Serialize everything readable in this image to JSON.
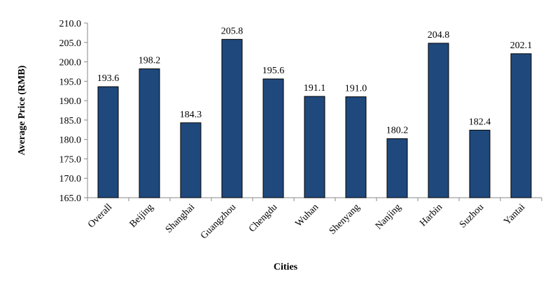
{
  "chart_data": {
    "type": "bar",
    "title": "",
    "xlabel": "Cities",
    "ylabel": "Average Price (RMB)",
    "ylim": [
      165,
      210
    ],
    "yticks": [
      "165.0",
      "170.0",
      "175.0",
      "180.0",
      "185.0",
      "190.0",
      "195.0",
      "200.0",
      "205.0",
      "210.0"
    ],
    "categories": [
      "Overall",
      "Beijing",
      "Shanghai",
      "Guangzhou",
      "Chengdu",
      "Wuhan",
      "Shenyang",
      "Nanjing",
      "Harbin",
      "Suzhou",
      "Yantai"
    ],
    "values": [
      193.6,
      198.2,
      184.3,
      205.8,
      195.6,
      191.1,
      191.0,
      180.2,
      204.8,
      182.4,
      202.1
    ],
    "data_labels": [
      "193.6",
      "198.2",
      "184.3",
      "205.8",
      "195.6",
      "191.1",
      "191.0",
      "180.2",
      "204.8",
      "182.4",
      "202.1"
    ],
    "bar_color": "#1f497d",
    "grid": false,
    "legend": "none"
  }
}
